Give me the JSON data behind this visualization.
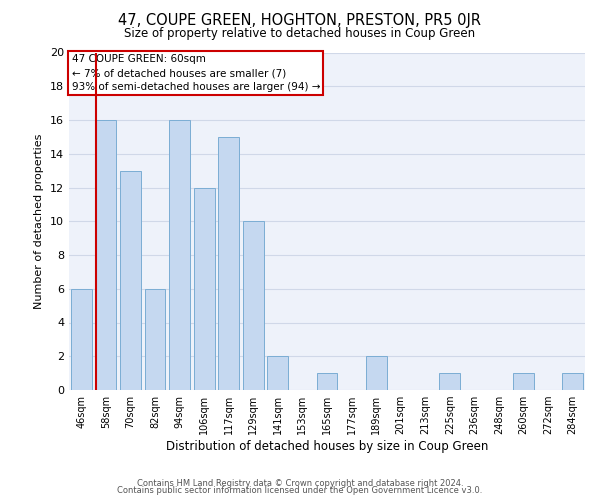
{
  "title": "47, COUPE GREEN, HOGHTON, PRESTON, PR5 0JR",
  "subtitle": "Size of property relative to detached houses in Coup Green",
  "xlabel": "Distribution of detached houses by size in Coup Green",
  "ylabel": "Number of detached properties",
  "footer_line1": "Contains HM Land Registry data © Crown copyright and database right 2024.",
  "footer_line2": "Contains public sector information licensed under the Open Government Licence v3.0.",
  "categories": [
    "46sqm",
    "58sqm",
    "70sqm",
    "82sqm",
    "94sqm",
    "106sqm",
    "117sqm",
    "129sqm",
    "141sqm",
    "153sqm",
    "165sqm",
    "177sqm",
    "189sqm",
    "201sqm",
    "213sqm",
    "225sqm",
    "236sqm",
    "248sqm",
    "260sqm",
    "272sqm",
    "284sqm"
  ],
  "values": [
    6,
    16,
    13,
    6,
    16,
    12,
    15,
    10,
    2,
    0,
    1,
    0,
    2,
    0,
    0,
    1,
    0,
    0,
    1,
    0,
    1
  ],
  "bar_color": "#c5d8f0",
  "bar_edge_color": "#7badd4",
  "annotation_text_line1": "47 COUPE GREEN: 60sqm",
  "annotation_text_line2": "← 7% of detached houses are smaller (7)",
  "annotation_text_line3": "93% of semi-detached houses are larger (94) →",
  "annotation_box_color": "#ffffff",
  "annotation_box_edge_color": "#cc0000",
  "ylim": [
    0,
    20
  ],
  "yticks": [
    0,
    2,
    4,
    6,
    8,
    10,
    12,
    14,
    16,
    18,
    20
  ],
  "grid_color": "#d0d8e8",
  "background_color": "#eef2fa",
  "title_fontsize": 10.5,
  "subtitle_fontsize": 8.5,
  "ylabel_fontsize": 8,
  "xlabel_fontsize": 8.5,
  "footer_fontsize": 6.0,
  "annotation_fontsize": 7.5,
  "ytick_fontsize": 8,
  "xtick_fontsize": 7
}
